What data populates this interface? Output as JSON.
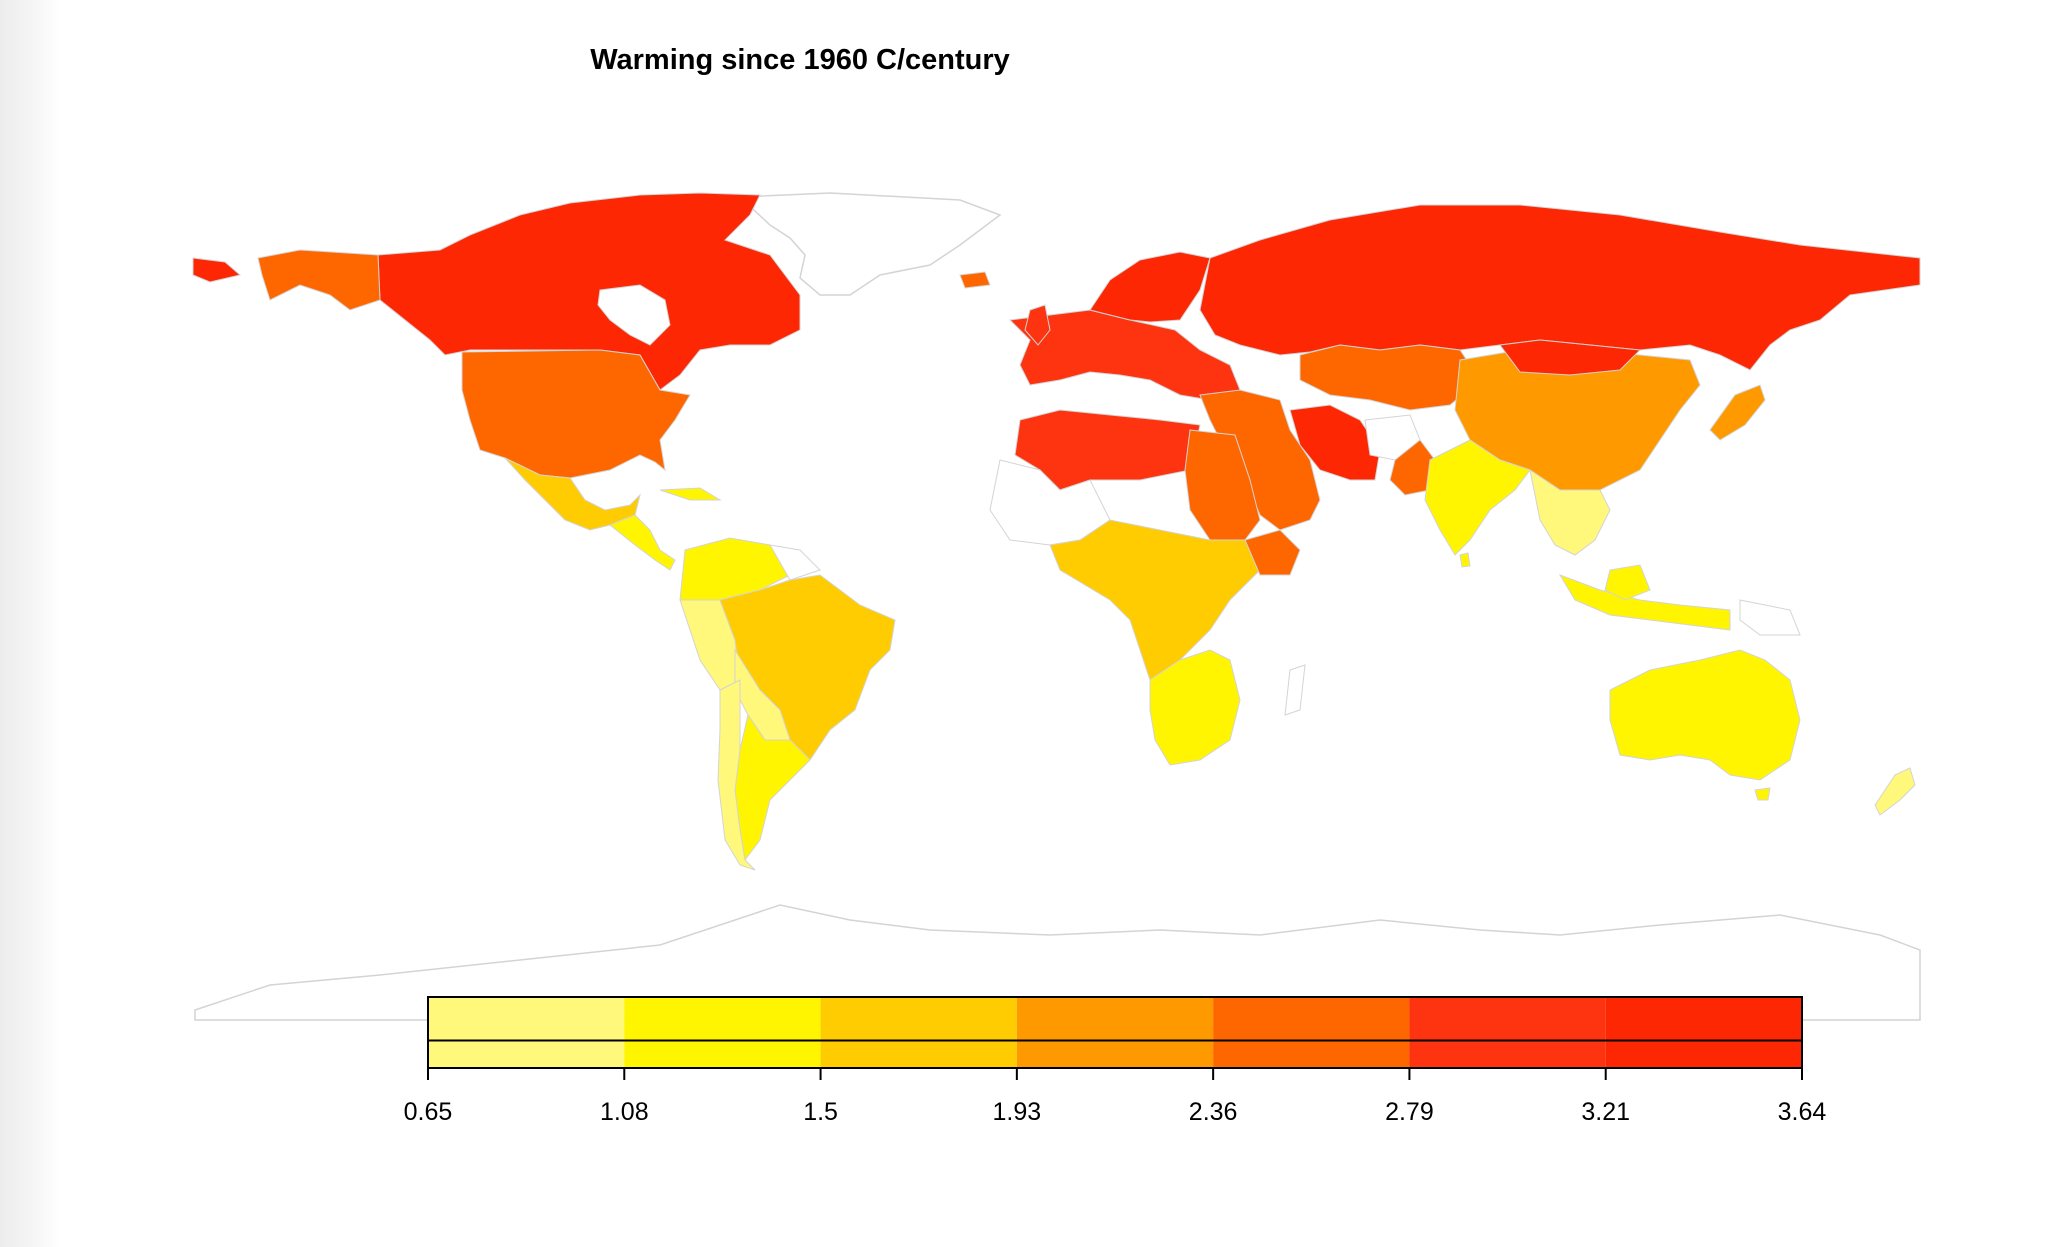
{
  "title": "Warming since 1960 C/century",
  "legend": {
    "breaks": [
      "0.65",
      "1.08",
      "1.5",
      "1.93",
      "2.36",
      "2.79",
      "3.21",
      "3.64"
    ],
    "bin_colors": [
      "#FFF87A",
      "#FFF500",
      "#FECC00",
      "#FE9A00",
      "#FE6600",
      "#FE3310",
      "#FE2704"
    ]
  },
  "colors": {
    "no_data": "#ffffff",
    "border": "#d4d4d4"
  },
  "regions": [
    {
      "name": "Canada",
      "bin": 6
    },
    {
      "name": "Russia",
      "bin": 6
    },
    {
      "name": "Alaska",
      "bin": 4
    },
    {
      "name": "United States",
      "bin": 4
    },
    {
      "name": "Mexico",
      "bin": 2
    },
    {
      "name": "Central America",
      "bin": 1
    },
    {
      "name": "Brazil",
      "bin": 2
    },
    {
      "name": "Argentina",
      "bin": 1
    },
    {
      "name": "Chile",
      "bin": 0
    },
    {
      "name": "Europe",
      "bin": 5
    },
    {
      "name": "North Africa",
      "bin": 5
    },
    {
      "name": "Central Africa",
      "bin": 2
    },
    {
      "name": "Southern Africa",
      "bin": 1
    },
    {
      "name": "Middle East",
      "bin": 4
    },
    {
      "name": "Iran",
      "bin": 6
    },
    {
      "name": "China",
      "bin": 3
    },
    {
      "name": "India",
      "bin": 1
    },
    {
      "name": "Southeast Asia",
      "bin": 0
    },
    {
      "name": "Indonesia",
      "bin": 1
    },
    {
      "name": "Australia",
      "bin": 1
    },
    {
      "name": "Japan",
      "bin": 3
    },
    {
      "name": "New Zealand",
      "bin": 0
    },
    {
      "name": "Scandinavia",
      "bin": 6
    }
  ]
}
